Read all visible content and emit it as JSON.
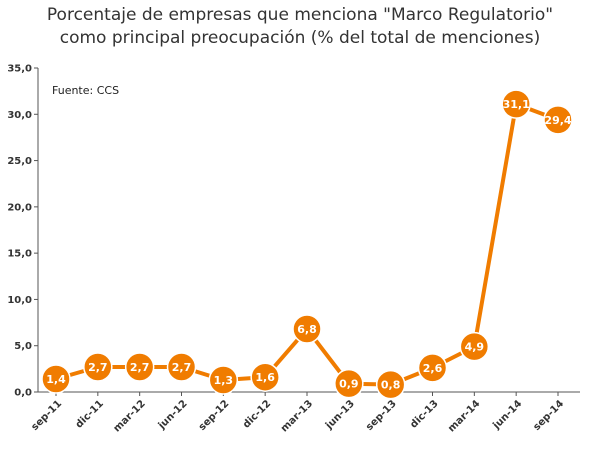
{
  "chart_data": {
    "type": "line",
    "title_line1": "Porcentaje de empresas que menciona \"Marco Regulatorio\"",
    "title_line2": "como principal preocupación (% del total de menciones)",
    "source": "Fuente: CCS",
    "categories": [
      "sep-11",
      "dic-11",
      "mar-12",
      "jun-12",
      "sep-12",
      "dic-12",
      "mar-13",
      "jun-13",
      "sep-13",
      "dic-13",
      "mar-14",
      "jun-14",
      "sep-14"
    ],
    "values": [
      1.4,
      2.7,
      2.7,
      2.7,
      1.3,
      1.6,
      6.8,
      0.9,
      0.8,
      2.6,
      4.9,
      31.1,
      29.4
    ],
    "data_labels": [
      "1,4",
      "2,7",
      "2,7",
      "2,7",
      "1,3",
      "1,6",
      "6,8",
      "0,9",
      "0,8",
      "2,6",
      "4,9",
      "31,1",
      "29,4"
    ],
    "y_ticks": [
      0,
      5,
      10,
      15,
      20,
      25,
      30,
      35
    ],
    "y_tick_labels": [
      "0,0",
      "5,0",
      "10,0",
      "15,0",
      "20,0",
      "25,0",
      "30,0",
      "35,0"
    ],
    "ylim": [
      0,
      35
    ],
    "grid": false,
    "colors": {
      "line": "#f07c00",
      "marker_fill": "#f07c00",
      "marker_stroke": "#ffffff",
      "axis": "#555555"
    }
  }
}
